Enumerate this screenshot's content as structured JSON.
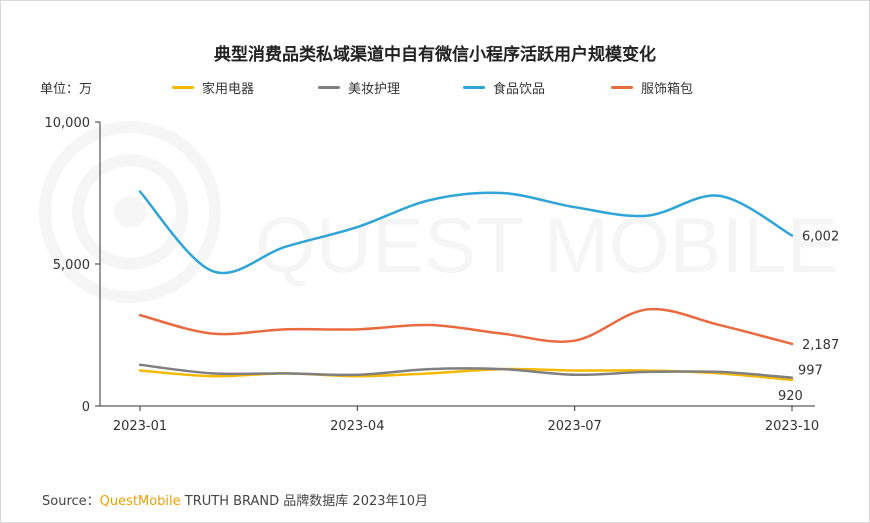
{
  "title": "典型消费品类私域渠道中自有微信小程序活跃用户规模变化",
  "unit_label": "单位：万",
  "watermark_text": "QUEST MOBILE",
  "source": {
    "prefix": "Source：",
    "brand": "QuestMobile",
    "rest": " TRUTH BRAND 品牌数据库 2023年10月"
  },
  "colors": {
    "home_appliances": "#f5b800",
    "beauty_care": "#7f7f7f",
    "food_drink": "#2fa4d6",
    "apparel_bags": "#ea6a40"
  },
  "chart_data": {
    "type": "line",
    "title": "典型消费品类私域渠道中自有微信小程序活跃用户规模变化",
    "ylabel": "单位：万",
    "ylim": [
      0,
      10000
    ],
    "yticks": [
      "0",
      "5,000",
      "10,000"
    ],
    "x": [
      "2023-01",
      "2023-02",
      "2023-03",
      "2023-04",
      "2023-05",
      "2023-06",
      "2023-07",
      "2023-08",
      "2023-09",
      "2023-10"
    ],
    "xtick_labels": [
      "2023-01",
      "2023-04",
      "2023-07",
      "2023-10"
    ],
    "grid": false,
    "legend_position": "top",
    "series": [
      {
        "name": "家用电器",
        "color_key": "home_appliances",
        "values": [
          1250,
          1050,
          1150,
          1050,
          1150,
          1300,
          1250,
          1250,
          1150,
          920
        ]
      },
      {
        "name": "美妆护理",
        "color_key": "beauty_care",
        "values": [
          1450,
          1150,
          1150,
          1100,
          1300,
          1300,
          1100,
          1200,
          1200,
          997
        ]
      },
      {
        "name": "食品饮品",
        "color_key": "food_drink",
        "values": [
          7550,
          4750,
          5600,
          6300,
          7250,
          7500,
          7000,
          6700,
          7400,
          6002
        ]
      },
      {
        "name": "服饰箱包",
        "color_key": "apparel_bags",
        "values": [
          3200,
          2550,
          2700,
          2700,
          2850,
          2550,
          2300,
          3400,
          2850,
          2187
        ]
      }
    ],
    "end_labels": [
      {
        "series": "食品饮品",
        "text": "6,002"
      },
      {
        "series": "服饰箱包",
        "text": "2,187"
      },
      {
        "series": "美妆护理",
        "text": "997"
      },
      {
        "series": "家用电器",
        "text": "920"
      }
    ]
  }
}
